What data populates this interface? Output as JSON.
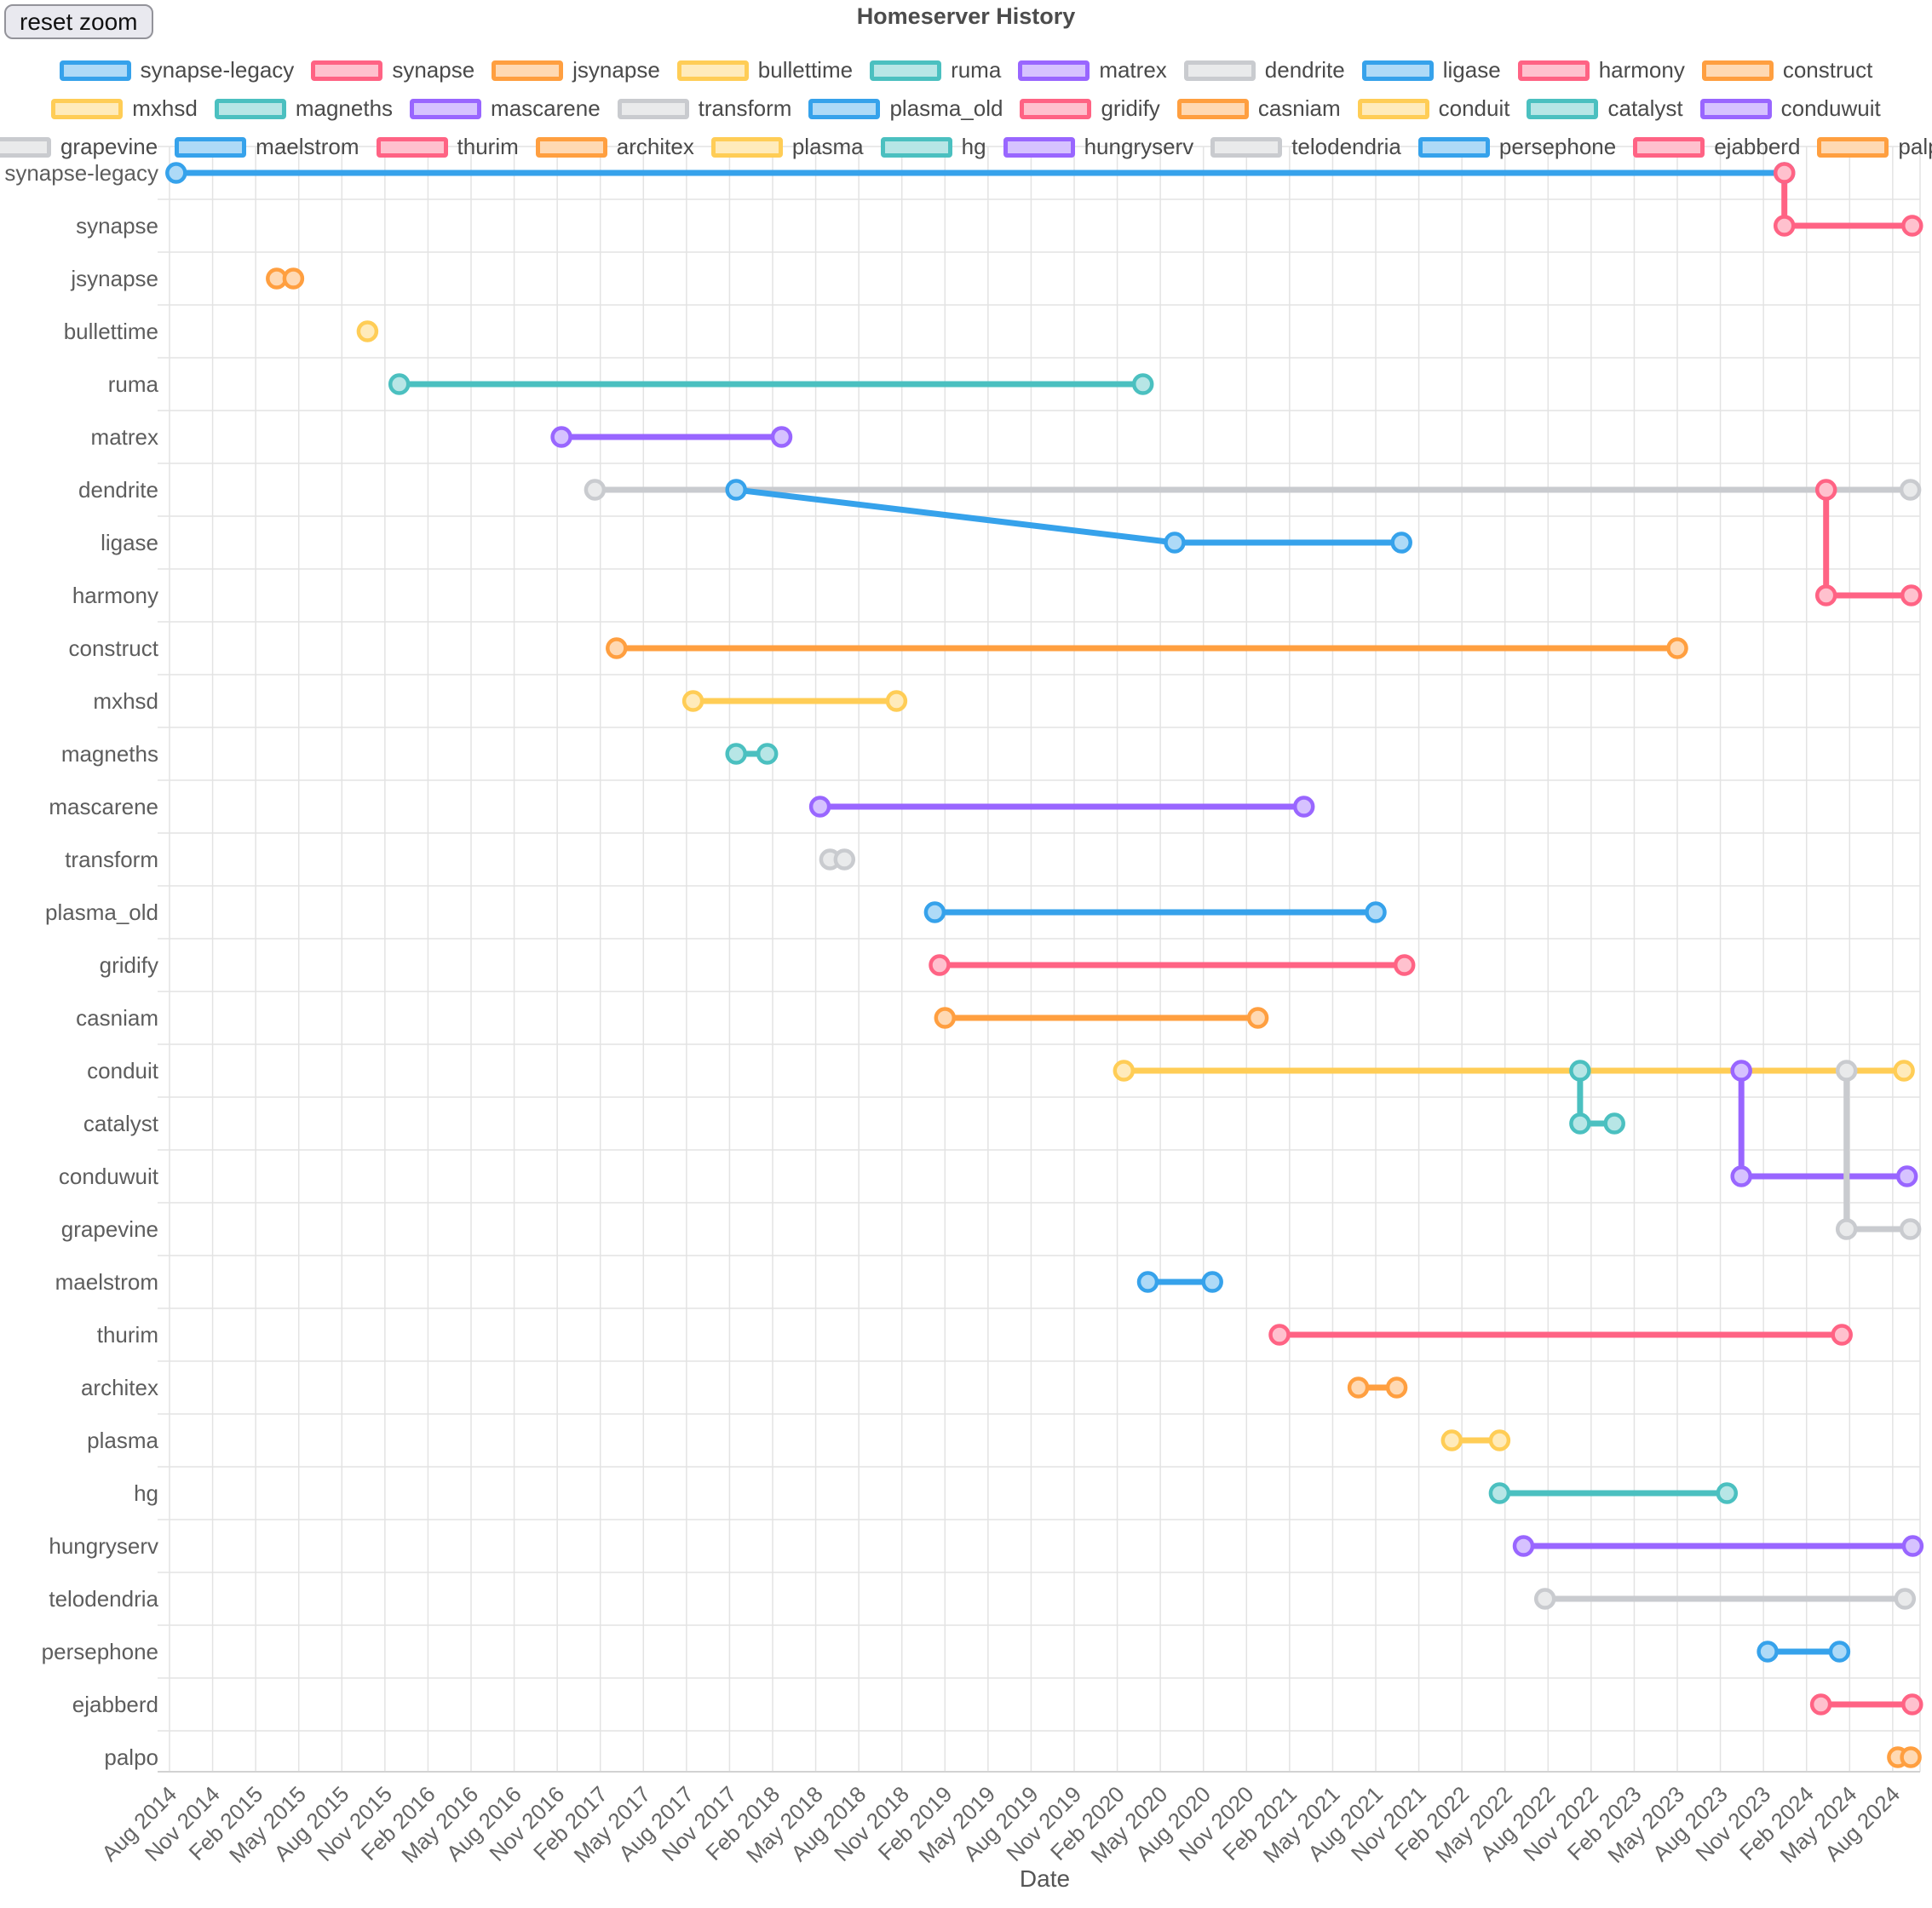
{
  "header": {
    "reset_button_label": "reset zoom",
    "title": "Homeserver History"
  },
  "chart_data": {
    "type": "line",
    "subtype": "gantt-timeline",
    "title": "Homeserver History",
    "xlabel": "Date",
    "ylabel": "",
    "grid": true,
    "legend_position": "top",
    "legend_rows": [
      10,
      10,
      11
    ],
    "x_axis": {
      "first_tick": "Aug 2014",
      "last_tick": "Aug 2024",
      "tick_interval_months": 3,
      "tick_rotation_deg": 45,
      "axis_min": "2014-08-01",
      "axis_max": "2024-09-30"
    },
    "rows": [
      "synapse-legacy",
      "synapse",
      "jsynapse",
      "bullettime",
      "ruma",
      "matrex",
      "dendrite",
      "ligase",
      "harmony",
      "construct",
      "mxhsd",
      "magneths",
      "mascarene",
      "transform",
      "plasma_old",
      "gridify",
      "casniam",
      "conduit",
      "catalyst",
      "conduwuit",
      "grapevine",
      "maelstrom",
      "thurim",
      "architex",
      "plasma",
      "hg",
      "hungryserv",
      "telodendria",
      "persephone",
      "ejabberd",
      "palpo"
    ],
    "palette": {
      "blue": {
        "line": "#36A2EB",
        "fill": "#AEDAF7"
      },
      "pink": {
        "line": "#FF6384",
        "fill": "#FFC1CE"
      },
      "orange": {
        "line": "#FF9F40",
        "fill": "#FFD9B3"
      },
      "yellow": {
        "line": "#FFCD56",
        "fill": "#FFEBBB"
      },
      "teal": {
        "line": "#4BC0C0",
        "fill": "#B7E6E6"
      },
      "purple": {
        "line": "#9966FF",
        "fill": "#D6C2FF"
      },
      "grey": {
        "line": "#C9CBCF",
        "fill": "#E9EAEB"
      }
    },
    "grid_color": "#e3e3e3",
    "axis_text_color": "#666666",
    "series": [
      {
        "name": "synapse-legacy",
        "color": "blue",
        "points": [
          {
            "date": "2014-08-15",
            "row": "synapse-legacy"
          },
          {
            "date": "2023-12-15",
            "row": "synapse-legacy"
          }
        ]
      },
      {
        "name": "synapse",
        "color": "pink",
        "points": [
          {
            "date": "2023-12-15",
            "row": "synapse-legacy"
          },
          {
            "date": "2023-12-15",
            "row": "synapse"
          },
          {
            "date": "2024-09-12",
            "row": "synapse"
          }
        ]
      },
      {
        "name": "jsynapse",
        "color": "orange",
        "points": [
          {
            "date": "2015-03-15",
            "row": "jsynapse"
          },
          {
            "date": "2015-04-20",
            "row": "jsynapse"
          }
        ]
      },
      {
        "name": "bullettime",
        "color": "yellow",
        "points": [
          {
            "date": "2015-09-25",
            "row": "bullettime"
          }
        ]
      },
      {
        "name": "ruma",
        "color": "teal",
        "points": [
          {
            "date": "2015-12-01",
            "row": "ruma"
          },
          {
            "date": "2020-03-25",
            "row": "ruma"
          }
        ]
      },
      {
        "name": "matrex",
        "color": "purple",
        "points": [
          {
            "date": "2016-11-10",
            "row": "matrex"
          },
          {
            "date": "2018-02-20",
            "row": "matrex"
          }
        ]
      },
      {
        "name": "dendrite",
        "color": "grey",
        "points": [
          {
            "date": "2017-01-20",
            "row": "dendrite"
          },
          {
            "date": "2024-09-08",
            "row": "dendrite"
          }
        ]
      },
      {
        "name": "ligase",
        "color": "blue",
        "points": [
          {
            "date": "2017-11-15",
            "row": "dendrite"
          },
          {
            "date": "2020-06-01",
            "row": "ligase"
          },
          {
            "date": "2021-09-25",
            "row": "ligase"
          }
        ]
      },
      {
        "name": "harmony",
        "color": "pink",
        "points": [
          {
            "date": "2024-03-12",
            "row": "dendrite"
          },
          {
            "date": "2024-03-12",
            "row": "harmony"
          },
          {
            "date": "2024-09-10",
            "row": "harmony"
          }
        ]
      },
      {
        "name": "construct",
        "color": "orange",
        "points": [
          {
            "date": "2017-03-05",
            "row": "construct"
          },
          {
            "date": "2023-05-01",
            "row": "construct"
          }
        ]
      },
      {
        "name": "mxhsd",
        "color": "yellow",
        "points": [
          {
            "date": "2017-08-15",
            "row": "mxhsd"
          },
          {
            "date": "2018-10-20",
            "row": "mxhsd"
          }
        ]
      },
      {
        "name": "magneths",
        "color": "teal",
        "points": [
          {
            "date": "2017-11-15",
            "row": "magneths"
          },
          {
            "date": "2018-01-20",
            "row": "magneths"
          }
        ]
      },
      {
        "name": "mascarene",
        "color": "purple",
        "points": [
          {
            "date": "2018-05-10",
            "row": "mascarene"
          },
          {
            "date": "2021-03-01",
            "row": "mascarene"
          }
        ]
      },
      {
        "name": "transform",
        "color": "grey",
        "points": [
          {
            "date": "2018-06-01",
            "row": "transform"
          },
          {
            "date": "2018-07-01",
            "row": "transform"
          }
        ]
      },
      {
        "name": "plasma_old",
        "color": "blue",
        "points": [
          {
            "date": "2019-01-10",
            "row": "plasma_old"
          },
          {
            "date": "2021-08-01",
            "row": "plasma_old"
          }
        ]
      },
      {
        "name": "gridify",
        "color": "pink",
        "points": [
          {
            "date": "2019-01-20",
            "row": "gridify"
          },
          {
            "date": "2021-10-01",
            "row": "gridify"
          }
        ]
      },
      {
        "name": "casniam",
        "color": "orange",
        "points": [
          {
            "date": "2019-02-01",
            "row": "casniam"
          },
          {
            "date": "2020-11-25",
            "row": "casniam"
          }
        ]
      },
      {
        "name": "conduit",
        "color": "yellow",
        "points": [
          {
            "date": "2020-02-15",
            "row": "conduit"
          },
          {
            "date": "2024-08-25",
            "row": "conduit"
          }
        ]
      },
      {
        "name": "catalyst",
        "color": "teal",
        "points": [
          {
            "date": "2022-10-08",
            "row": "conduit"
          },
          {
            "date": "2022-10-08",
            "row": "catalyst"
          },
          {
            "date": "2022-12-20",
            "row": "catalyst"
          }
        ]
      },
      {
        "name": "conduwuit",
        "color": "purple",
        "points": [
          {
            "date": "2023-09-15",
            "row": "conduit"
          },
          {
            "date": "2023-09-15",
            "row": "conduwuit"
          },
          {
            "date": "2024-09-01",
            "row": "conduwuit"
          }
        ]
      },
      {
        "name": "grapevine",
        "color": "grey",
        "points": [
          {
            "date": "2024-04-25",
            "row": "conduit"
          },
          {
            "date": "2024-04-25",
            "row": "grapevine"
          },
          {
            "date": "2024-09-08",
            "row": "grapevine"
          }
        ]
      },
      {
        "name": "maelstrom",
        "color": "blue",
        "points": [
          {
            "date": "2020-04-05",
            "row": "maelstrom"
          },
          {
            "date": "2020-08-20",
            "row": "maelstrom"
          }
        ]
      },
      {
        "name": "thurim",
        "color": "pink",
        "points": [
          {
            "date": "2021-01-10",
            "row": "thurim"
          },
          {
            "date": "2024-04-15",
            "row": "thurim"
          }
        ]
      },
      {
        "name": "architex",
        "color": "orange",
        "points": [
          {
            "date": "2021-06-25",
            "row": "architex"
          },
          {
            "date": "2021-09-15",
            "row": "architex"
          }
        ]
      },
      {
        "name": "plasma",
        "color": "yellow",
        "points": [
          {
            "date": "2022-01-10",
            "row": "plasma"
          },
          {
            "date": "2022-04-20",
            "row": "plasma"
          }
        ]
      },
      {
        "name": "hg",
        "color": "teal",
        "points": [
          {
            "date": "2022-04-20",
            "row": "hg"
          },
          {
            "date": "2023-08-15",
            "row": "hg"
          }
        ]
      },
      {
        "name": "hungryserv",
        "color": "purple",
        "points": [
          {
            "date": "2022-06-10",
            "row": "hungryserv"
          },
          {
            "date": "2024-09-13",
            "row": "hungryserv"
          }
        ]
      },
      {
        "name": "telodendria",
        "color": "grey",
        "points": [
          {
            "date": "2022-07-25",
            "row": "telodendria"
          },
          {
            "date": "2024-08-27",
            "row": "telodendria"
          }
        ]
      },
      {
        "name": "persephone",
        "color": "blue",
        "points": [
          {
            "date": "2023-11-10",
            "row": "persephone"
          },
          {
            "date": "2024-04-10",
            "row": "persephone"
          }
        ]
      },
      {
        "name": "ejabberd",
        "color": "pink",
        "points": [
          {
            "date": "2024-03-01",
            "row": "ejabberd"
          },
          {
            "date": "2024-09-12",
            "row": "ejabberd"
          }
        ]
      },
      {
        "name": "palpo",
        "color": "orange",
        "points": [
          {
            "date": "2024-08-12",
            "row": "palpo"
          },
          {
            "date": "2024-09-09",
            "row": "palpo"
          }
        ]
      }
    ]
  }
}
